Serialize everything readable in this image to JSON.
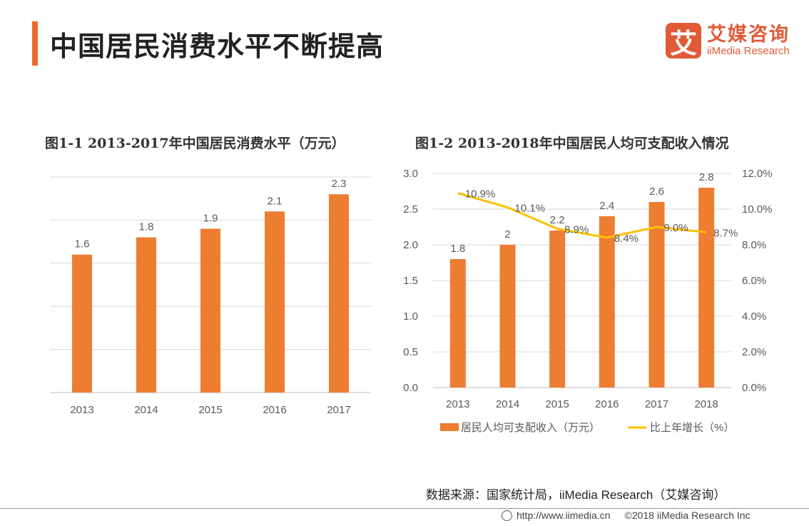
{
  "header": {
    "title": "中国居民消费水平不断提高"
  },
  "logo": {
    "mark": "艾",
    "name_cn": "艾媒咨询",
    "name_en": "iiMedia Research"
  },
  "chart_data": [
    {
      "type": "bar",
      "title": "图1-1 2013-2017年中国居民消费水平（万元）",
      "categories": [
        "2013",
        "2014",
        "2015",
        "2016",
        "2017"
      ],
      "values": [
        1.6,
        1.8,
        1.9,
        2.1,
        2.3
      ],
      "labels": [
        "1.6",
        "1.8",
        "1.9",
        "2.1",
        "2.3"
      ],
      "ylim": [
        0,
        2.5
      ],
      "grid": true,
      "color": "#ed7d31"
    },
    {
      "type": "bar+line",
      "title": "图1-2 2013-2018年中国居民人均可支配收入情况",
      "categories": [
        "2013",
        "2014",
        "2015",
        "2016",
        "2017",
        "2018"
      ],
      "series": [
        {
          "name": "居民人均可支配收入（万元）",
          "type": "bar",
          "axis": "left",
          "values": [
            1.8,
            2,
            2.2,
            2.4,
            2.6,
            2.8
          ],
          "labels": [
            "1.8",
            "2",
            "2.2",
            "2.4",
            "2.6",
            "2.8"
          ],
          "color": "#ed7d31"
        },
        {
          "name": "比上年增长（%）",
          "type": "line",
          "axis": "right",
          "values": [
            10.9,
            10.1,
            8.9,
            8.4,
            9.0,
            8.7
          ],
          "labels": [
            "10.9%",
            "10.1%",
            "8.9%",
            "8.4%",
            "9.0%",
            "8.7%"
          ],
          "color": "#ffc000"
        }
      ],
      "ylim": [
        0,
        3.0
      ],
      "y2lim": [
        0,
        12
      ],
      "yticks": [
        "0.0",
        "0.5",
        "1.0",
        "1.5",
        "2.0",
        "2.5",
        "3.0"
      ],
      "y2ticks": [
        "0.0%",
        "2.0%",
        "4.0%",
        "6.0%",
        "8.0%",
        "10.0%",
        "12.0%"
      ],
      "legend": "bottom",
      "grid": true
    }
  ],
  "source": "数据来源：国家统计局，iiMedia Research（艾媒咨询）",
  "footer": {
    "url": "http://www.iimedia.cn",
    "copyright": "©2018  iiMedia Research  Inc"
  }
}
